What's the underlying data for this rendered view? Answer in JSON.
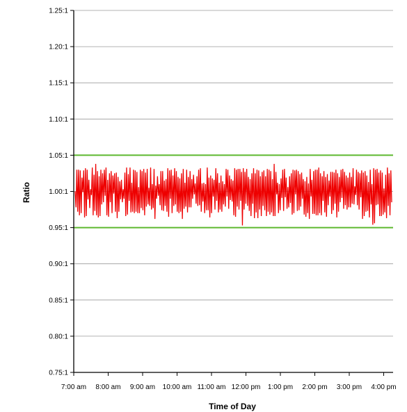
{
  "chart_data": {
    "type": "line",
    "title": "",
    "xlabel": "Time of Day",
    "ylabel": "Ratio",
    "x_tick_labels": [
      "7:00 am",
      "8:00 am",
      "9:00 am",
      "10:00 am",
      "11:00 am",
      "12:00 pm",
      "1:00 pm",
      "2:00 pm",
      "3:00 pm",
      "4:00 pm"
    ],
    "y_tick_values": [
      0.75,
      0.8,
      0.85,
      0.9,
      0.95,
      1.0,
      1.05,
      1.1,
      1.15,
      1.2,
      1.25
    ],
    "y_tick_labels": [
      "0.75:1",
      "0.80:1",
      "0.85:1",
      "0.90:1",
      "0.95:1",
      "1.00:1",
      "1.05:1",
      "1.10:1",
      "1.15:1",
      "1.20:1",
      "1.25:1"
    ],
    "ylim": [
      0.75,
      1.25
    ],
    "xlim": [
      "7:00 am",
      "4:30 pm"
    ],
    "grid": true,
    "legend": "none",
    "reference_lines": [
      {
        "y": 1.05,
        "color": "#5cb82e"
      },
      {
        "y": 0.95,
        "color": "#5cb82e"
      }
    ],
    "series": [
      {
        "color": "#ee0000",
        "x_start": "7:00 am",
        "x_end": "4:30 pm",
        "y_center": 1.0,
        "y_min_observed": 0.953,
        "y_max_observed": 1.038,
        "typical_range": [
          0.97,
          1.03
        ],
        "values": [
          1.0,
          0.978,
          1.03,
          0.972,
          1.03,
          0.967,
          1.029,
          0.97,
          1.019,
          0.999,
          1.029,
          0.964,
          1.032,
          0.966,
          1.03,
          0.989,
          1.016,
          0.977,
          1.003,
          0.995,
          1.033,
          0.967,
          1.023,
          0.973,
          1.038,
          0.967,
          1.028,
          0.964,
          1.021,
          0.966,
          1.03,
          0.982,
          1.025,
          0.985,
          1.03,
          0.994,
          1.033,
          0.967,
          1.016,
          0.965,
          1.025,
          0.985,
          1.028,
          0.97,
          1.022,
          0.997,
          1.025,
          0.972,
          1.026,
          0.963,
          1.02,
          0.972,
          1.014,
          0.989,
          1.016,
          0.985,
          1.003,
          0.99,
          1.026,
          0.966,
          1.033,
          0.968,
          1.024,
          0.987,
          1.033,
          0.971,
          1.012,
          0.972,
          1.03,
          0.97,
          1.029,
          0.972,
          1.027,
          0.97,
          1.006,
          0.97,
          1.03,
          0.977,
          1.028,
          0.974,
          1.031,
          0.967,
          1.026,
          0.979,
          1.031,
          0.982,
          1.005,
          0.98,
          1.033,
          0.975,
          1.01,
          0.977,
          1.031,
          0.962,
          1.008,
          0.99,
          1.021,
          0.994,
          1.01,
          0.981,
          1.028,
          0.974,
          1.028,
          0.973,
          1.015,
          0.98,
          1.017,
          0.972,
          1.032,
          0.965,
          1.029,
          0.99,
          1.03,
          0.97,
          1.022,
          0.98,
          1.032,
          0.982,
          1.028,
          0.972,
          1.02,
          0.97,
          1.018,
          0.972,
          1.025,
          0.962,
          1.031,
          0.976,
          1.012,
          0.979,
          1.03,
          0.971,
          1.02,
          0.978,
          1.028,
          0.978,
          1.017,
          0.99,
          1.023,
          0.996,
          1.011,
          0.983,
          1.021,
          0.98,
          1.03,
          0.981,
          1.032,
          0.972,
          1.011,
          0.986,
          1.012,
          0.97,
          1.01,
          0.974,
          1.033,
          0.974,
          1.019,
          0.964,
          1.022,
          0.97,
          1.018,
          0.993,
          1.016,
          0.975,
          1.032,
          0.987,
          1.025,
          0.971,
          1.012,
          0.975,
          1.022,
          0.972,
          1.014,
          0.982,
          1.01,
          0.979,
          1.031,
          0.993,
          1.03,
          0.976,
          1.022,
          0.988,
          1.017,
          0.986,
          1.015,
          0.967,
          1.032,
          0.965,
          1.03,
          0.979,
          1.031,
          0.975,
          1.031,
          0.987,
          1.027,
          0.953,
          1.032,
          0.975,
          1.027,
          0.983,
          1.031,
          0.98,
          1.02,
          0.973,
          1.017,
          0.966,
          1.025,
          0.983,
          1.032,
          0.963,
          1.025,
          0.971,
          1.03,
          0.963,
          1.029,
          0.975,
          1.021,
          0.966,
          1.027,
          0.98,
          1.029,
          0.974,
          1.021,
          0.966,
          1.031,
          0.972,
          1.03,
          0.968,
          1.028,
          0.971,
          1.017,
          0.966,
          1.038,
          0.966,
          1.027,
          0.996,
          1.012,
          0.97,
          1.01,
          0.974,
          1.018,
          0.991,
          1.03,
          0.973,
          1.031,
          0.992,
          1.019,
          0.976,
          1.006,
          0.978,
          1.021,
          0.984,
          1.025,
          0.968,
          1.03,
          0.97,
          1.029,
          0.996,
          1.03,
          0.973,
          1.028,
          0.974,
          1.024,
          0.979,
          1.026,
          0.99,
          1.017,
          0.968,
          1.014,
          0.965,
          1.02,
          0.97,
          1.011,
          0.962,
          1.031,
          0.993,
          1.016,
          0.969,
          1.028,
          0.969,
          1.03,
          0.967,
          1.03,
          0.967,
          1.033,
          0.97,
          1.025,
          0.967,
          1.021,
          0.987,
          1.028,
          0.971,
          1.02,
          0.965,
          1.024,
          0.981,
          1.015,
          0.993,
          1.027,
          0.969,
          1.027,
          0.974,
          1.026,
          0.983,
          1.03,
          0.964,
          1.025,
          0.972,
          1.02,
          0.985,
          1.03,
          0.991,
          1.031,
          0.976,
          1.027,
          0.981,
          1.022,
          0.975,
          1.019,
          0.978,
          1.026,
          0.978,
          1.02,
          0.983,
          1.032,
          0.982,
          1.007,
          0.995,
          1.03,
          0.981,
          1.027,
          0.975,
          1.025,
          0.992,
          1.029,
          0.962,
          1.026,
          0.966,
          1.028,
          0.972,
          1.022,
          0.973,
          1.013,
          0.964,
          1.03,
          0.982,
          1.01,
          0.954,
          1.032,
          0.956,
          1.03,
          0.981,
          1.031,
          0.982,
          1.026,
          0.966,
          1.029,
          0.966,
          1.026,
          0.968,
          1.004,
          0.971,
          1.023,
          0.963,
          1.033,
          0.98,
          1.025,
          0.967,
          1.029,
          0.985
        ]
      }
    ]
  }
}
